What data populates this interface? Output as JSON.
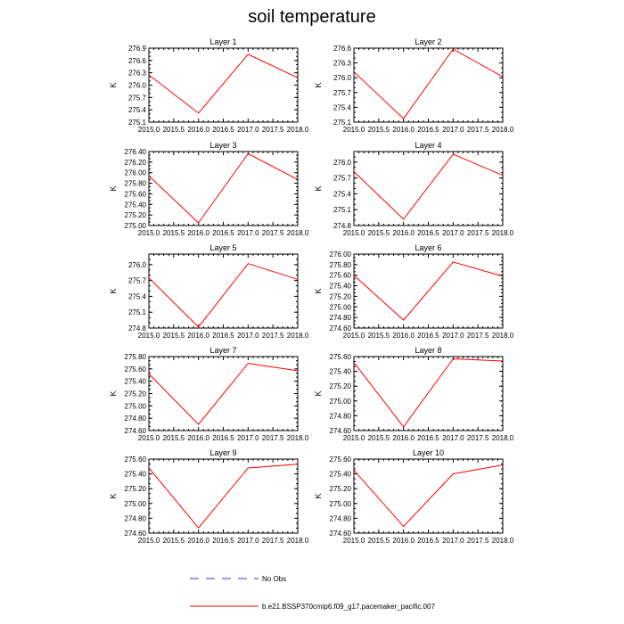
{
  "title": "soil temperature",
  "legend": {
    "items": [
      {
        "label": "No Obs",
        "color": "#3b3b8f",
        "dash": true
      },
      {
        "label": "b.e21.BSSP370cmip6.f09_g17.pacemaker_pacific.007",
        "color": "#ff0000",
        "dash": false
      }
    ]
  },
  "colors": {
    "series": "#ff0000",
    "obs": "#3b3b8f"
  },
  "chart_data": [
    {
      "type": "line",
      "title": "Layer 1",
      "ylabel": "K",
      "x": [
        2015,
        2016,
        2017,
        2018
      ],
      "xlim": [
        2015,
        2018
      ],
      "xticks": [
        "2015.0",
        "2015.5",
        "2016.0",
        "2016.5",
        "2017.0",
        "2017.5",
        "2018.0"
      ],
      "ylim": [
        275.1,
        276.9
      ],
      "yticks": [
        "275.1",
        "275.4",
        "275.7",
        "276.0",
        "276.3",
        "276.6",
        "276.9"
      ],
      "series": [
        {
          "name": "b.e21.BSSP370cmip6.f09_g17.pacemaker_pacific.007",
          "values": [
            276.25,
            275.32,
            276.75,
            276.18
          ]
        }
      ]
    },
    {
      "type": "line",
      "title": "Layer 2",
      "ylabel": "K",
      "x": [
        2015,
        2016,
        2017,
        2018
      ],
      "xlim": [
        2015,
        2018
      ],
      "xticks": [
        "2015.0",
        "2015.5",
        "2016.0",
        "2016.5",
        "2017.0",
        "2017.5",
        "2018.0"
      ],
      "ylim": [
        275.1,
        276.6
      ],
      "yticks": [
        "275.1",
        "275.4",
        "275.7",
        "276.0",
        "276.3",
        "276.6"
      ],
      "series": [
        {
          "name": "b.e21.BSSP370cmip6.f09_g17.pacemaker_pacific.007",
          "values": [
            276.12,
            275.17,
            276.58,
            276.02
          ]
        }
      ]
    },
    {
      "type": "line",
      "title": "Layer 3",
      "ylabel": "K",
      "x": [
        2015,
        2016,
        2017,
        2018
      ],
      "xlim": [
        2015,
        2018
      ],
      "xticks": [
        "2015.0",
        "2015.5",
        "2016.0",
        "2016.5",
        "2017.0",
        "2017.5",
        "2018.0"
      ],
      "ylim": [
        275.0,
        276.4
      ],
      "yticks": [
        "275.00",
        "275.20",
        "275.40",
        "275.60",
        "275.80",
        "276.00",
        "276.20",
        "276.40"
      ],
      "series": [
        {
          "name": "b.e21.BSSP370cmip6.f09_g17.pacemaker_pacific.007",
          "values": [
            275.94,
            275.05,
            276.36,
            275.87
          ]
        }
      ]
    },
    {
      "type": "line",
      "title": "Layer 4",
      "ylabel": "K",
      "x": [
        2015,
        2016,
        2017,
        2018
      ],
      "xlim": [
        2015,
        2018
      ],
      "xticks": [
        "2015.0",
        "2015.5",
        "2016.0",
        "2016.5",
        "2017.0",
        "2017.5",
        "2018.0"
      ],
      "ylim": [
        274.8,
        276.2
      ],
      "yticks": [
        "274.8",
        "275.1",
        "275.4",
        "275.7",
        "276.0"
      ],
      "series": [
        {
          "name": "b.e21.BSSP370cmip6.f09_g17.pacemaker_pacific.007",
          "values": [
            275.82,
            274.92,
            276.15,
            275.75
          ]
        }
      ]
    },
    {
      "type": "line",
      "title": "Layer 5",
      "ylabel": "K",
      "x": [
        2015,
        2016,
        2017,
        2018
      ],
      "xlim": [
        2015,
        2018
      ],
      "xticks": [
        "2015.0",
        "2015.5",
        "2016.0",
        "2016.5",
        "2017.0",
        "2017.5",
        "2018.0"
      ],
      "ylim": [
        274.8,
        276.2
      ],
      "yticks": [
        "274.8",
        "275.1",
        "275.4",
        "275.7",
        "276.0"
      ],
      "series": [
        {
          "name": "b.e21.BSSP370cmip6.f09_g17.pacemaker_pacific.007",
          "values": [
            275.75,
            274.82,
            276.02,
            275.72
          ]
        }
      ]
    },
    {
      "type": "line",
      "title": "Layer 6",
      "ylabel": "K",
      "x": [
        2015,
        2016,
        2017,
        2018
      ],
      "xlim": [
        2015,
        2018
      ],
      "xticks": [
        "2015.0",
        "2015.5",
        "2016.0",
        "2016.5",
        "2017.0",
        "2017.5",
        "2018.0"
      ],
      "ylim": [
        274.6,
        276.0
      ],
      "yticks": [
        "274.60",
        "274.80",
        "275.00",
        "275.20",
        "275.40",
        "275.60",
        "275.80",
        "276.00"
      ],
      "series": [
        {
          "name": "b.e21.BSSP370cmip6.f09_g17.pacemaker_pacific.007",
          "values": [
            275.6,
            274.75,
            275.85,
            275.58
          ]
        }
      ]
    },
    {
      "type": "line",
      "title": "Layer 7",
      "ylabel": "K",
      "x": [
        2015,
        2016,
        2017,
        2018
      ],
      "xlim": [
        2015,
        2018
      ],
      "xticks": [
        "2015.0",
        "2015.5",
        "2016.0",
        "2016.5",
        "2017.0",
        "2017.5",
        "2018.0"
      ],
      "ylim": [
        274.6,
        275.8
      ],
      "yticks": [
        "274.60",
        "274.80",
        "275.00",
        "275.20",
        "275.40",
        "275.60",
        "275.80"
      ],
      "series": [
        {
          "name": "b.e21.BSSP370cmip6.f09_g17.pacemaker_pacific.007",
          "values": [
            275.52,
            274.7,
            275.69,
            275.57
          ]
        }
      ]
    },
    {
      "type": "line",
      "title": "Layer 8",
      "ylabel": "K",
      "x": [
        2015,
        2016,
        2017,
        2018
      ],
      "xlim": [
        2015,
        2018
      ],
      "xticks": [
        "2015.0",
        "2015.5",
        "2016.0",
        "2016.5",
        "2017.0",
        "2017.5",
        "2018.0"
      ],
      "ylim": [
        274.6,
        275.6
      ],
      "yticks": [
        "274.60",
        "274.80",
        "275.00",
        "275.20",
        "275.40",
        "275.60"
      ],
      "series": [
        {
          "name": "b.e21.BSSP370cmip6.f09_g17.pacemaker_pacific.007",
          "values": [
            275.52,
            274.65,
            275.57,
            275.54
          ]
        }
      ]
    },
    {
      "type": "line",
      "title": "Layer 9",
      "ylabel": "K",
      "x": [
        2015,
        2016,
        2017,
        2018
      ],
      "xlim": [
        2015,
        2018
      ],
      "xticks": [
        "2015.0",
        "2015.5",
        "2016.0",
        "2016.5",
        "2017.0",
        "2017.5",
        "2018.0"
      ],
      "ylim": [
        274.6,
        275.6
      ],
      "yticks": [
        "274.60",
        "274.80",
        "275.00",
        "275.20",
        "275.40",
        "275.60"
      ],
      "series": [
        {
          "name": "b.e21.BSSP370cmip6.f09_g17.pacemaker_pacific.007",
          "values": [
            275.48,
            274.67,
            275.48,
            275.53
          ]
        }
      ]
    },
    {
      "type": "line",
      "title": "Layer 10",
      "ylabel": "K",
      "x": [
        2015,
        2016,
        2017,
        2018
      ],
      "xlim": [
        2015,
        2018
      ],
      "xticks": [
        "2015.0",
        "2015.5",
        "2016.0",
        "2016.5",
        "2017.0",
        "2017.5",
        "2018.0"
      ],
      "ylim": [
        274.6,
        275.6
      ],
      "yticks": [
        "274.60",
        "274.80",
        "275.00",
        "275.20",
        "275.40",
        "275.60"
      ],
      "series": [
        {
          "name": "b.e21.BSSP370cmip6.f09_g17.pacemaker_pacific.007",
          "values": [
            275.45,
            274.69,
            275.4,
            275.52
          ]
        }
      ]
    }
  ]
}
